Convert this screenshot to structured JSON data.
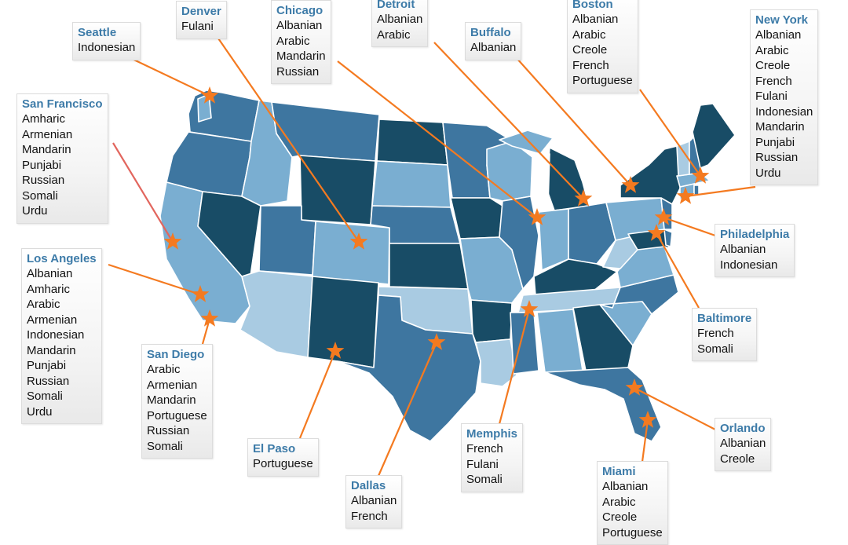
{
  "colors": {
    "shade_dark": "#184c66",
    "shade_mid": "#3e76a0",
    "shade_light": "#7aaed1",
    "shade_pale": "#a9cbe2",
    "state_border": "#ffffff",
    "star": "#f47a20",
    "leader_line": "#f47a20",
    "leader_line_sf": "#e2665e",
    "city_name": "#3d7ba8"
  },
  "icons": {
    "city_marker": "star-icon"
  },
  "cities": [
    {
      "id": "seattle",
      "name": "Seattle",
      "languages": [
        "Indonesian"
      ]
    },
    {
      "id": "denver",
      "name": "Denver",
      "languages": [
        "Fulani"
      ]
    },
    {
      "id": "chicago",
      "name": "Chicago",
      "languages": [
        "Albanian",
        "Arabic",
        "Mandarin",
        "Russian"
      ]
    },
    {
      "id": "detroit",
      "name": "Detroit",
      "languages": [
        "Albanian",
        "Arabic"
      ]
    },
    {
      "id": "buffalo",
      "name": "Buffalo",
      "languages": [
        "Albanian"
      ]
    },
    {
      "id": "boston",
      "name": "Boston",
      "languages": [
        "Albanian",
        "Arabic",
        "Creole",
        "French",
        "Portuguese"
      ]
    },
    {
      "id": "new-york",
      "name": "New York",
      "languages": [
        "Albanian",
        "Arabic",
        "Creole",
        "French",
        "Fulani",
        "Indonesian",
        "Mandarin",
        "Punjabi",
        "Russian",
        "Urdu"
      ]
    },
    {
      "id": "san-francisco",
      "name": "San Francisco",
      "languages": [
        "Amharic",
        "Armenian",
        "Mandarin",
        "Punjabi",
        "Russian",
        "Somali",
        "Urdu"
      ]
    },
    {
      "id": "los-angeles",
      "name": "Los Angeles",
      "languages": [
        "Albanian",
        "Amharic",
        "Arabic",
        "Armenian",
        "Indonesian",
        "Mandarin",
        "Punjabi",
        "Russian",
        "Somali",
        "Urdu"
      ]
    },
    {
      "id": "san-diego",
      "name": "San Diego",
      "languages": [
        "Arabic",
        "Armenian",
        "Mandarin",
        "Portuguese",
        "Russian",
        "Somali"
      ]
    },
    {
      "id": "el-paso",
      "name": "El Paso",
      "languages": [
        "Portuguese"
      ]
    },
    {
      "id": "dallas",
      "name": "Dallas",
      "languages": [
        "Albanian",
        "French"
      ]
    },
    {
      "id": "memphis",
      "name": "Memphis",
      "languages": [
        "French",
        "Fulani",
        "Somali"
      ]
    },
    {
      "id": "miami",
      "name": "Miami",
      "languages": [
        "Albanian",
        "Arabic",
        "Creole",
        "Portuguese"
      ]
    },
    {
      "id": "orlando",
      "name": "Orlando",
      "languages": [
        "Albanian",
        "Creole"
      ]
    },
    {
      "id": "baltimore",
      "name": "Baltimore",
      "languages": [
        "French",
        "Somali"
      ]
    },
    {
      "id": "philadelphia",
      "name": "Philadelphia",
      "languages": [
        "Albanian",
        "Indonesian"
      ]
    }
  ]
}
